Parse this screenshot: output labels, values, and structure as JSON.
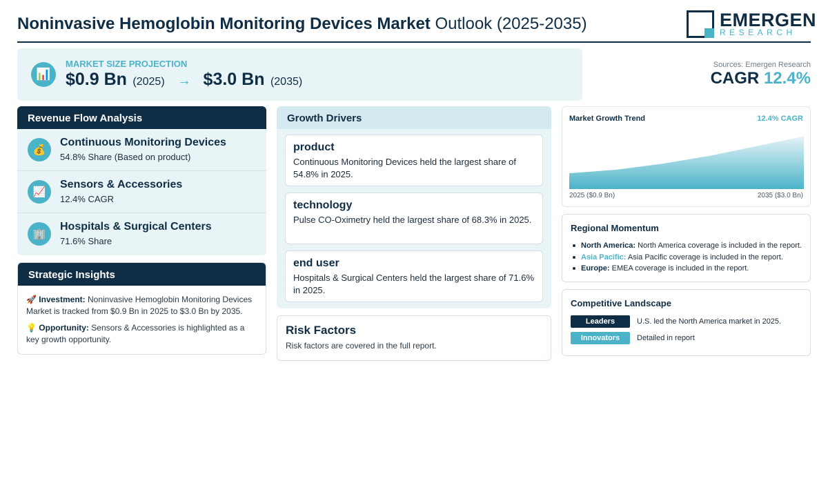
{
  "header": {
    "title_bold": "Noninvasive Hemoglobin Monitoring Devices Market",
    "title_rest": "Outlook (2025-2035)",
    "logo_name": "EMERGEN",
    "logo_sub": "RESEARCH"
  },
  "market_size": {
    "label": "MARKET SIZE PROJECTION",
    "start_value": "$0.9 Bn",
    "start_year": "(2025)",
    "arrow": "→",
    "end_value": "$3.0 Bn",
    "end_year": "(2035)",
    "icon": "bar-chart-icon"
  },
  "sources": "Sources: Emergen Research",
  "cagr": {
    "label": "CAGR",
    "value": "12.4%"
  },
  "revenue_flow": {
    "title": "Revenue Flow Analysis",
    "items": [
      {
        "name": "Continuous Monitoring Devices",
        "sub": "54.8% Share (Based on product)",
        "icon": "money-bag-icon",
        "glyph": "💰"
      },
      {
        "name": "Sensors & Accessories",
        "sub": "12.4% CAGR",
        "icon": "trending-up-icon",
        "glyph": "📈"
      },
      {
        "name": "Hospitals & Surgical Centers",
        "sub": "71.6% Share",
        "icon": "building-icon",
        "glyph": "🏢"
      }
    ]
  },
  "strategic_insights": {
    "title": "Strategic Insights",
    "items": [
      {
        "icon": "rocket-icon",
        "glyph": "🚀",
        "label": "Investment:",
        "text": "Noninvasive Hemoglobin Monitoring Devices Market is tracked from $0.9 Bn in 2025 to $3.0 Bn by 2035."
      },
      {
        "icon": "lightbulb-icon",
        "glyph": "💡",
        "label": "Opportunity:",
        "text": "Sensors & Accessories is highlighted as a key growth opportunity."
      }
    ]
  },
  "growth_drivers": {
    "title": "Growth Drivers",
    "items": [
      {
        "title": "product",
        "text": "Continuous Monitoring Devices held the largest share of 54.8% in 2025."
      },
      {
        "title": "technology",
        "text": "Pulse CO-Oximetry held the largest share of 68.3% in 2025."
      },
      {
        "title": "end user",
        "text": "Hospitals & Surgical Centers held the largest share of 71.6% in 2025."
      }
    ]
  },
  "risk_factors": {
    "title": "Risk Factors",
    "text": "Risk factors are covered in the full report."
  },
  "chart_data": {
    "type": "area",
    "title": "Market Growth Trend",
    "annotation": "12.4% CAGR",
    "x": [
      2025,
      2027,
      2029,
      2031,
      2033,
      2035
    ],
    "values": [
      0.9,
      1.1,
      1.45,
      1.9,
      2.45,
      3.0
    ],
    "x_start_label": "2025 ($0.9 Bn)",
    "x_end_label": "2035 ($3.0 Bn)",
    "ylim": [
      0,
      3.0
    ],
    "grid": false,
    "colors": {
      "fill_top": "#e3f3f7",
      "fill_bottom": "#4bb3c8"
    }
  },
  "regional_momentum": {
    "title": "Regional Momentum",
    "items": [
      {
        "region": "North America:",
        "text": "North America coverage is included in the report."
      },
      {
        "region": "Asia Pacific:",
        "text": "Asia Pacific coverage is included in the report."
      },
      {
        "region": "Europe:",
        "text": "EMEA coverage is included in the report."
      }
    ]
  },
  "competitive_landscape": {
    "title": "Competitive Landscape",
    "rows": [
      {
        "badge": "Leaders",
        "text": "U.S. led the North America market in 2025."
      },
      {
        "badge": "Innovators",
        "text": "Detailed in report"
      }
    ]
  },
  "colors": {
    "navy": "#0f2d45",
    "teal": "#4bb3c8",
    "panel_bg": "#e9f4f6"
  }
}
